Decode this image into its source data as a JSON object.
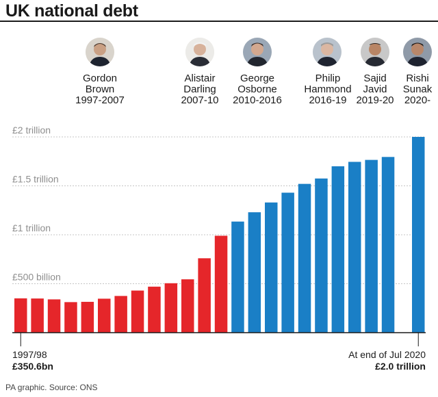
{
  "title": "UK national debt",
  "source": "PA graphic. Source: ONS",
  "colors": {
    "labour": "#e5262a",
    "conservative": "#1a7fc6",
    "grid": "#c4c4c4",
    "tick": "#8e8e8e"
  },
  "chancellors": [
    {
      "line1": "Gordon",
      "line2": "Brown",
      "years": "1997-2007",
      "party": "labour",
      "icon": "portrait-icon"
    },
    {
      "line1": "Alistair",
      "line2": "Darling",
      "years": "2007-10",
      "party": "labour",
      "icon": "portrait-icon"
    },
    {
      "line1": "George",
      "line2": "Osborne",
      "years": "2010-2016",
      "party": "conservative",
      "icon": "portrait-icon"
    },
    {
      "line1": "Philip",
      "line2": "Hammond",
      "years": "2016-19",
      "party": "conservative",
      "icon": "portrait-icon"
    },
    {
      "line1": "Sajid",
      "line2": "Javid",
      "years": "2019-20",
      "party": "conservative",
      "icon": "portrait-icon"
    },
    {
      "line1": "Rishi",
      "line2": "Sunak",
      "years": "2020-",
      "party": "conservative",
      "icon": "portrait-icon"
    }
  ],
  "chart_data": {
    "type": "bar",
    "title": "UK national debt",
    "unit": "£ billion",
    "ylim": [
      0,
      2000
    ],
    "y_ticks": [
      {
        "value": 500,
        "label": "£500 billion"
      },
      {
        "value": 1000,
        "label": "£1 trillion"
      },
      {
        "value": 1500,
        "label": "£1.5 trillion"
      },
      {
        "value": 2000,
        "label": "£2 trillion"
      }
    ],
    "grid": true,
    "values": [
      350.6,
      349,
      340,
      312,
      315,
      347,
      375,
      430,
      470,
      505,
      545,
      760,
      990,
      1135,
      1230,
      1330,
      1430,
      1520,
      1575,
      1700,
      1745,
      1765,
      1795,
      2000
    ],
    "bar_colors": [
      "labour",
      "labour",
      "labour",
      "labour",
      "labour",
      "labour",
      "labour",
      "labour",
      "labour",
      "labour",
      "labour",
      "labour",
      "labour",
      "conservative",
      "conservative",
      "conservative",
      "conservative",
      "conservative",
      "conservative",
      "conservative",
      "conservative",
      "conservative",
      "conservative",
      "conservative"
    ],
    "annotations": [
      {
        "line1": "1997/98",
        "line2": "£350.6bn"
      },
      {
        "line1": "At end of Jul 2020",
        "line2": "£2.0 trillion"
      }
    ]
  }
}
